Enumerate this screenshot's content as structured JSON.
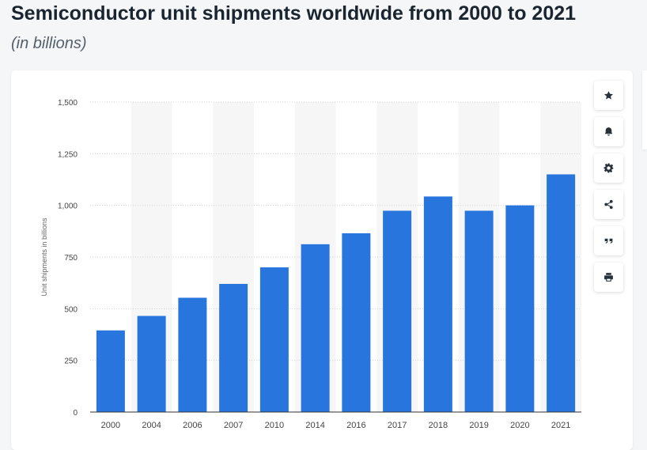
{
  "header": {
    "title": "Semiconductor unit shipments worldwide from 2000 to 2021",
    "subtitle": "(in billions)"
  },
  "colors": {
    "bar": "#2876dd",
    "band": "#f6f6f7",
    "grid": "#cfd3d7",
    "axis": "#333333",
    "tick_text": "#444444"
  },
  "tools": [
    {
      "name": "star-icon"
    },
    {
      "name": "bell-icon"
    },
    {
      "name": "gear-icon"
    },
    {
      "name": "share-icon"
    },
    {
      "name": "quote-icon"
    },
    {
      "name": "print-icon"
    }
  ],
  "chart_data": {
    "type": "bar",
    "categories": [
      "2000",
      "2004",
      "2006",
      "2007",
      "2010",
      "2014",
      "2016",
      "2017",
      "2018",
      "2019",
      "2020",
      "2021"
    ],
    "series": [
      {
        "values": [
          395,
          465,
          553,
          620,
          700,
          812,
          865,
          974,
          1043,
          974,
          1000,
          1150
        ]
      }
    ],
    "ylabel": "Unit shipments in billions",
    "ylim": [
      0,
      1500
    ],
    "yticks": [
      0,
      250,
      500,
      750,
      1000,
      1250,
      1500
    ],
    "ytick_labels": [
      "0",
      "250",
      "500",
      "750",
      "1,000",
      "1,250",
      "1,500"
    ],
    "grid": true,
    "legend": "none"
  }
}
